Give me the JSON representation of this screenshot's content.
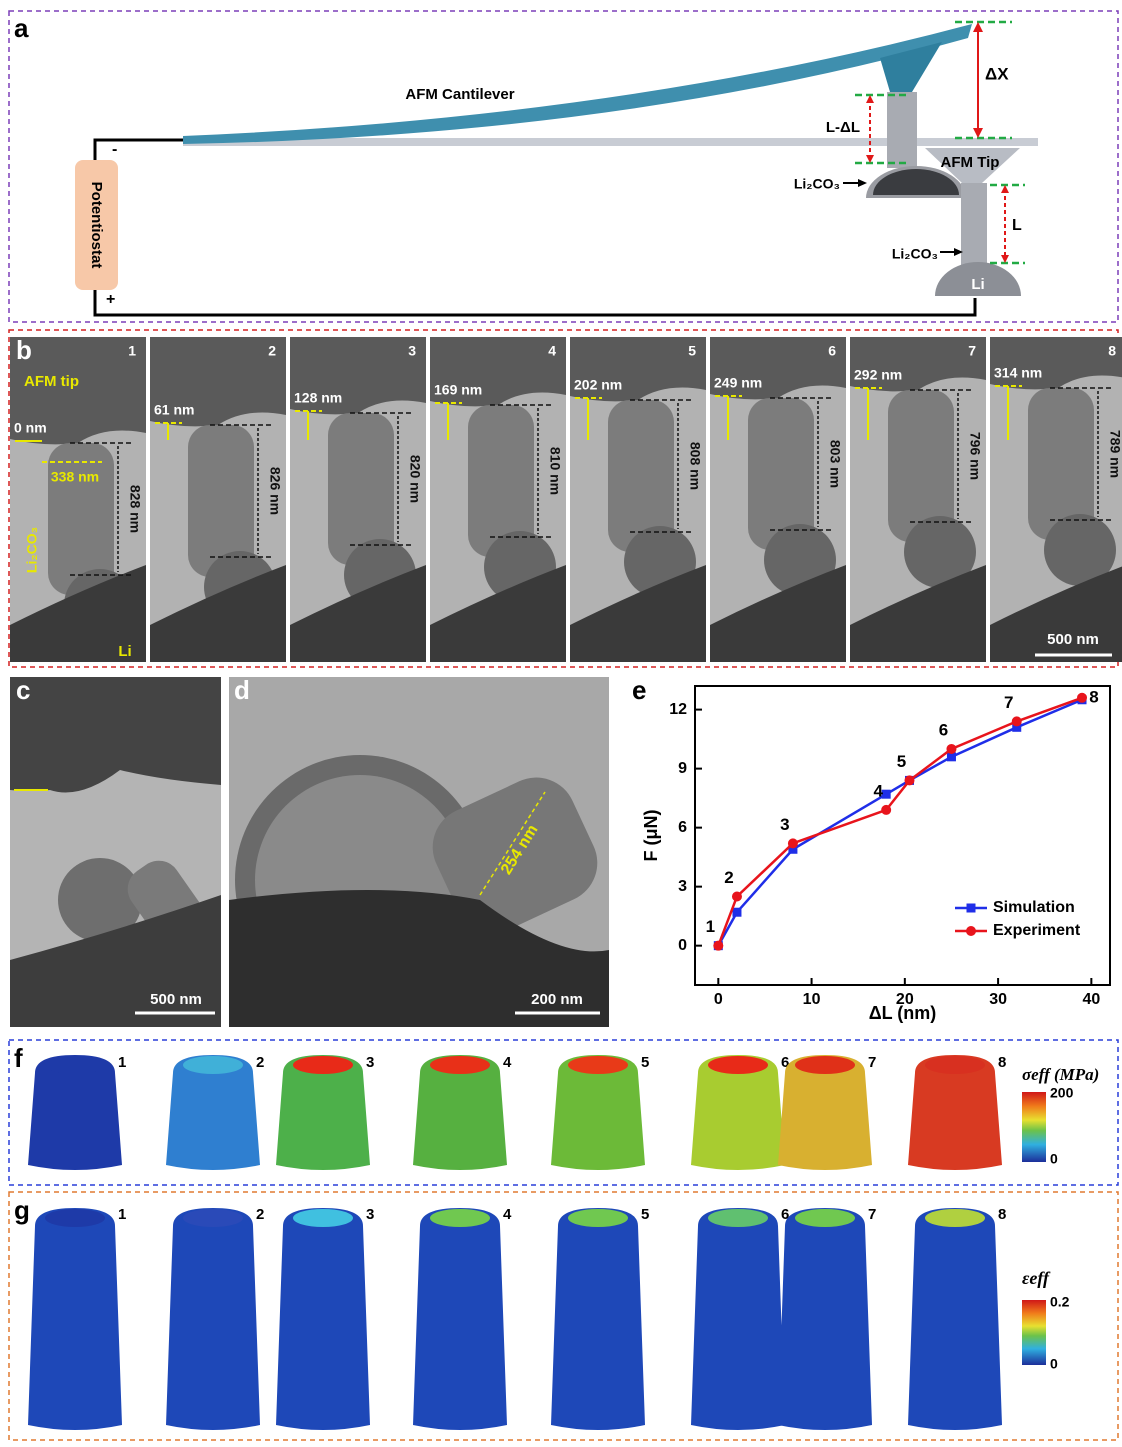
{
  "panel_a": {
    "label": "a",
    "cantilever": "AFM Cantilever",
    "delta_x": "ΔX",
    "l_minus_delta_l": "L-ΔL",
    "afm_tip": "AFM Tip",
    "li2co3_top": "Li₂CO₃",
    "li2co3_bottom": "Li₂CO₃",
    "length": "L",
    "li": "Li",
    "potentiostat": "Potentiostat",
    "minus": "-",
    "plus": "+"
  },
  "panel_b": {
    "label": "b",
    "afm_tip": "AFM tip",
    "width": "338 nm",
    "li2co3": "Li₂CO₃",
    "li": "Li",
    "scale_bar": "500 nm",
    "frames": [
      {
        "number": "1",
        "offset": "0 nm",
        "length": "828 nm"
      },
      {
        "number": "2",
        "offset": "61 nm",
        "length": "826 nm"
      },
      {
        "number": "3",
        "offset": "128 nm",
        "length": "820 nm"
      },
      {
        "number": "4",
        "offset": "169 nm",
        "length": "810 nm"
      },
      {
        "number": "5",
        "offset": "202 nm",
        "length": "808 nm"
      },
      {
        "number": "6",
        "offset": "249 nm",
        "length": "803 nm"
      },
      {
        "number": "7",
        "offset": "292 nm",
        "length": "796 nm"
      },
      {
        "number": "8",
        "offset": "314 nm",
        "length": "789 nm"
      }
    ]
  },
  "panel_c": {
    "label": "c",
    "scale_bar": "500 nm"
  },
  "panel_d": {
    "label": "d",
    "scale_bar": "200 nm",
    "diameter": "254 nm"
  },
  "chart_data": {
    "type": "line",
    "panel_label": "e",
    "x_label": "ΔL (nm)",
    "y_label": "F (μN)",
    "xlim": [
      -2.5,
      42
    ],
    "ylim": [
      -2,
      13.2
    ],
    "xticks": [
      0,
      10,
      20,
      30,
      40
    ],
    "yticks": [
      0,
      3,
      6,
      9,
      12
    ],
    "legend": "lower right",
    "point_labels": [
      "1",
      "2",
      "3",
      "4",
      "5",
      "6",
      "7",
      "8"
    ],
    "series": [
      {
        "name": "Simulation",
        "color": "#1f2ee8",
        "marker": "square",
        "x": [
          0,
          2,
          8,
          18,
          20.5,
          25,
          32,
          39
        ],
        "values": [
          0,
          1.7,
          4.9,
          7.7,
          8.4,
          9.6,
          11.1,
          12.5
        ]
      },
      {
        "name": "Experiment",
        "color": "#e8141c",
        "marker": "circle",
        "x": [
          0,
          2,
          8,
          18,
          20.5,
          25,
          32,
          39
        ],
        "values": [
          0,
          2.5,
          5.2,
          6.9,
          8.4,
          10.0,
          11.4,
          12.6
        ]
      }
    ]
  },
  "panel_f": {
    "label": "f",
    "numbers": [
      "1",
      "2",
      "3",
      "4",
      "5",
      "6",
      "7",
      "8"
    ],
    "colorbar_title": "σeff (MPa)",
    "colorbar_max": "200",
    "colorbar_min": "0"
  },
  "panel_g": {
    "label": "g",
    "numbers": [
      "1",
      "2",
      "3",
      "4",
      "5",
      "6",
      "7",
      "8"
    ],
    "colorbar_title": "εeff",
    "colorbar_max": "0.2",
    "colorbar_min": "0"
  }
}
